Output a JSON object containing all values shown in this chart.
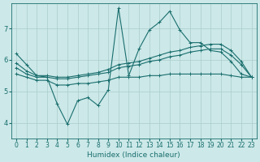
{
  "title": "",
  "xlabel": "Humidex (Indice chaleur)",
  "bg_color": "#cce8e8",
  "grid_color": "#aacccc",
  "line_color": "#1a6e6e",
  "xlim": [
    -0.5,
    23.5
  ],
  "ylim": [
    3.5,
    7.8
  ],
  "yticks": [
    4,
    5,
    6,
    7
  ],
  "xticks": [
    0,
    1,
    2,
    3,
    4,
    5,
    6,
    7,
    8,
    9,
    10,
    11,
    12,
    13,
    14,
    15,
    16,
    17,
    18,
    19,
    20,
    21,
    22,
    23
  ],
  "series": [
    {
      "x": [
        0,
        1,
        2,
        3,
        4,
        5,
        6,
        7,
        8,
        9,
        10,
        11,
        12,
        13,
        14,
        15,
        16,
        17,
        18,
        19,
        20,
        21,
        22,
        23
      ],
      "y": [
        6.2,
        5.85,
        5.5,
        5.45,
        4.6,
        3.95,
        4.7,
        4.8,
        4.55,
        5.05,
        7.65,
        5.5,
        6.35,
        6.95,
        7.2,
        7.55,
        6.95,
        6.55,
        6.55,
        6.3,
        6.25,
        5.95,
        5.55,
        5.45
      ]
    },
    {
      "x": [
        0,
        1,
        2,
        3,
        4,
        5,
        6,
        7,
        8,
        9,
        10,
        11,
        12,
        13,
        14,
        15,
        16,
        17,
        18,
        19,
        20,
        21,
        22,
        23
      ],
      "y": [
        5.9,
        5.65,
        5.5,
        5.5,
        5.45,
        5.45,
        5.5,
        5.55,
        5.6,
        5.7,
        5.85,
        5.9,
        5.95,
        6.05,
        6.15,
        6.25,
        6.3,
        6.4,
        6.45,
        6.5,
        6.5,
        6.3,
        5.95,
        5.45
      ]
    },
    {
      "x": [
        0,
        1,
        2,
        3,
        4,
        5,
        6,
        7,
        8,
        9,
        10,
        11,
        12,
        13,
        14,
        15,
        16,
        17,
        18,
        19,
        20,
        21,
        22,
        23
      ],
      "y": [
        5.75,
        5.55,
        5.45,
        5.45,
        5.4,
        5.4,
        5.45,
        5.5,
        5.55,
        5.6,
        5.75,
        5.8,
        5.85,
        5.95,
        6.0,
        6.1,
        6.15,
        6.25,
        6.3,
        6.35,
        6.35,
        6.15,
        5.85,
        5.45
      ]
    },
    {
      "x": [
        0,
        1,
        2,
        3,
        4,
        5,
        6,
        7,
        8,
        9,
        10,
        11,
        12,
        13,
        14,
        15,
        16,
        17,
        18,
        19,
        20,
        21,
        22,
        23
      ],
      "y": [
        5.55,
        5.45,
        5.35,
        5.35,
        5.2,
        5.2,
        5.25,
        5.25,
        5.3,
        5.35,
        5.45,
        5.45,
        5.45,
        5.5,
        5.5,
        5.55,
        5.55,
        5.55,
        5.55,
        5.55,
        5.55,
        5.5,
        5.45,
        5.45
      ]
    }
  ],
  "marker": "+",
  "markersize": 3,
  "linewidth": 0.8,
  "xlabel_fontsize": 6.5,
  "tick_fontsize": 5.5
}
